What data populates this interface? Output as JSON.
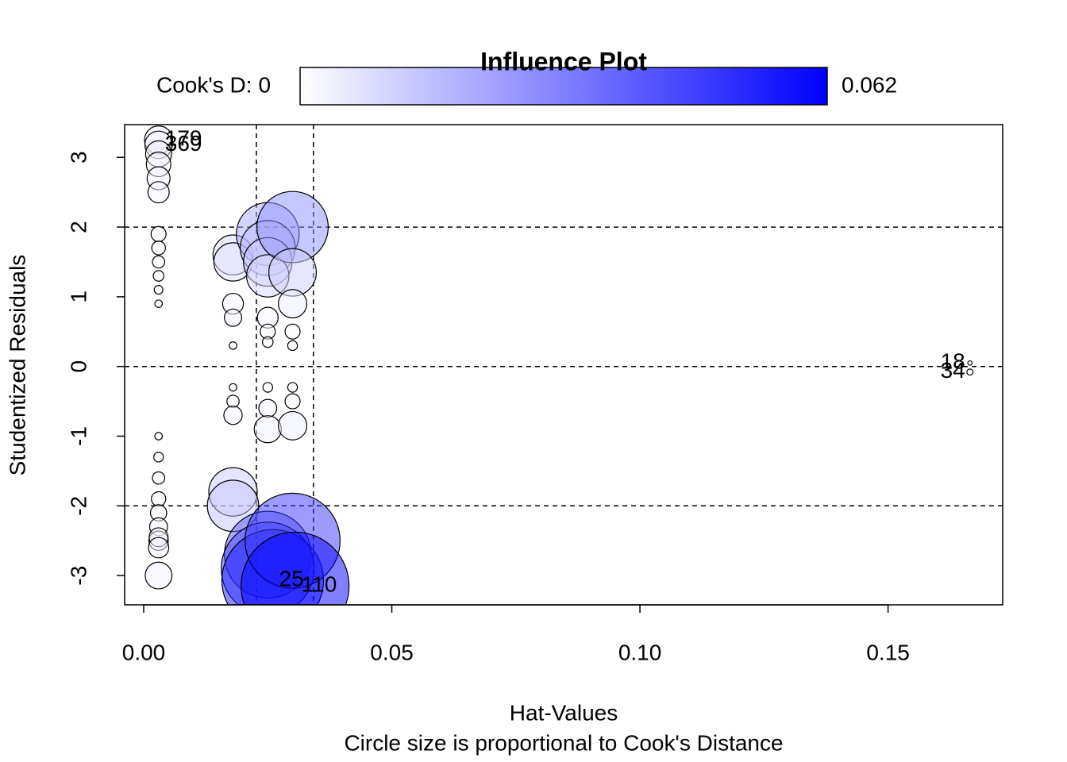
{
  "chart_data": {
    "type": "bubble",
    "title": "Influence Plot",
    "xlabel": "Hat-Values",
    "subtitle": "Circle size is proportional to Cook's Distance",
    "ylabel": "Studentized Residuals",
    "colorbar_label": "Cook's D:",
    "cooks_range": [
      0,
      0.062
    ],
    "colormap": [
      "#ffffff",
      "#0000ff"
    ],
    "xlim": [
      -0.00384,
      0.1731
    ],
    "ylim": [
      -3.42,
      3.47
    ],
    "xticks": [
      {
        "value": 0,
        "label": "0.00"
      },
      {
        "value": 0.05,
        "label": "0.05"
      },
      {
        "value": 0.1,
        "label": "0.10"
      },
      {
        "value": 0.15,
        "label": "0.15"
      }
    ],
    "yticks": [
      -3,
      -2,
      -1,
      0,
      1,
      2,
      3
    ],
    "hlines": [
      -2,
      0,
      2
    ],
    "vlines": [
      0.0227,
      0.0342
    ],
    "x": [
      0.003,
      0.003,
      0.003,
      0.003,
      0.003,
      0.003,
      0.003,
      0.003,
      0.003,
      0.003,
      0.003,
      0.003,
      0.003,
      0.003,
      0.003,
      0.003,
      0.003,
      0.003,
      0.003,
      0.003,
      0.003,
      0.003,
      0.018,
      0.018,
      0.018,
      0.018,
      0.018,
      0.018,
      0.018,
      0.018,
      0.018,
      0.018,
      0.025,
      0.025,
      0.025,
      0.025,
      0.025,
      0.025,
      0.025,
      0.025,
      0.025,
      0.025,
      0.025,
      0.025,
      0.026,
      0.03,
      0.03,
      0.03,
      0.03,
      0.03,
      0.03,
      0.03,
      0.03,
      0.03,
      0.0305,
      0.1665,
      0.1665
    ],
    "y": [
      3.25,
      3.18,
      3.05,
      2.9,
      2.7,
      2.5,
      1.9,
      1.7,
      1.5,
      1.3,
      1.1,
      0.9,
      -1.0,
      -1.3,
      -1.6,
      -1.9,
      -2.1,
      -2.3,
      -2.5,
      -2.45,
      -2.6,
      -3.0,
      1.6,
      1.5,
      0.9,
      0.7,
      0.3,
      -0.3,
      -0.5,
      -0.7,
      -1.8,
      -2.0,
      1.9,
      1.7,
      1.5,
      1.3,
      0.7,
      0.5,
      0.35,
      -0.3,
      -0.6,
      -0.9,
      -2.7,
      -2.9,
      -3.07,
      2.0,
      1.35,
      0.9,
      0.5,
      0.3,
      -0.3,
      -0.5,
      -0.85,
      -2.5,
      -3.15,
      0.05,
      -0.08
    ],
    "cooks": [
      0.0042,
      0.004,
      0.0036,
      0.0032,
      0.0028,
      0.0024,
      0.0012,
      0.001,
      0.0008,
      0.0006,
      0.0004,
      0.0003,
      0.0003,
      0.0005,
      0.0008,
      0.0011,
      0.0014,
      0.0017,
      0.002,
      0.0019,
      0.0022,
      0.0038,
      0.0085,
      0.0078,
      0.0023,
      0.0016,
      0.0003,
      0.0003,
      0.0008,
      0.0018,
      0.0125,
      0.014,
      0.021,
      0.016,
      0.0125,
      0.0095,
      0.0023,
      0.0012,
      0.0006,
      0.0005,
      0.0017,
      0.0039,
      0.04,
      0.046,
      0.055,
      0.027,
      0.012,
      0.0043,
      0.0012,
      0.0005,
      0.0005,
      0.0012,
      0.0043,
      0.048,
      0.062,
      0.0001,
      0.0002
    ],
    "labels": [
      "179",
      "369",
      null,
      null,
      null,
      null,
      null,
      null,
      null,
      null,
      null,
      null,
      null,
      null,
      null,
      null,
      null,
      null,
      null,
      null,
      null,
      null,
      null,
      null,
      null,
      null,
      null,
      null,
      null,
      null,
      null,
      null,
      null,
      null,
      null,
      null,
      null,
      null,
      null,
      null,
      null,
      null,
      null,
      null,
      "25",
      null,
      null,
      null,
      null,
      null,
      null,
      null,
      null,
      null,
      "110",
      "18",
      "34"
    ]
  }
}
